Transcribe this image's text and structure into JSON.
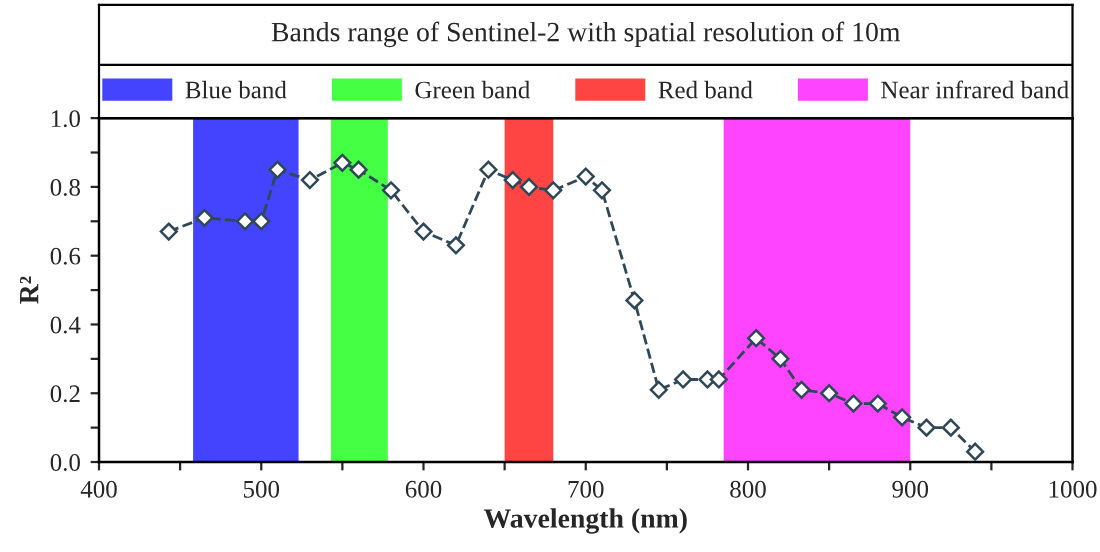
{
  "chart_data": {
    "type": "line",
    "title": "Bands range of Sentinel-2 with spatial resolution of 10m",
    "xlabel": "Wavelength (nm)",
    "ylabel": "R²",
    "series": [
      {
        "color": "#2f4858",
        "x": [
          443,
          465,
          490,
          500,
          510,
          530,
          550,
          560,
          580,
          600,
          620,
          640,
          655,
          665,
          680,
          700,
          710,
          730,
          745,
          760,
          775,
          782,
          805,
          820,
          833,
          850,
          865,
          880,
          895,
          910,
          925,
          940
        ],
        "values": [
          0.67,
          0.71,
          0.7,
          0.7,
          0.85,
          0.82,
          0.87,
          0.85,
          0.79,
          0.67,
          0.63,
          0.85,
          0.82,
          0.8,
          0.79,
          0.83,
          0.79,
          0.47,
          0.21,
          0.24,
          0.24,
          0.24,
          0.36,
          0.3,
          0.21,
          0.2,
          0.17,
          0.17,
          0.13,
          0.1,
          0.1,
          0.03
        ]
      }
    ],
    "bands": [
      {
        "axis": "x",
        "from": 458,
        "to": 523,
        "label": "Blue band",
        "color": "#4444ff"
      },
      {
        "axis": "x",
        "from": 543,
        "to": 578,
        "label": "Green band",
        "color": "#44ff44"
      },
      {
        "axis": "x",
        "from": 650,
        "to": 680,
        "label": "Red band",
        "color": "#ff4444"
      },
      {
        "axis": "x",
        "from": 785,
        "to": 900,
        "label": "Near infrared band",
        "color": "#ff44ff"
      }
    ],
    "xlim": [
      400,
      1000
    ],
    "xticks": [
      400,
      {
        "value": 450,
        "label": null
      },
      500,
      {
        "value": 550,
        "label": null
      },
      600,
      {
        "value": 650,
        "label": null
      },
      700,
      {
        "value": 750,
        "label": null
      },
      800,
      {
        "value": 850,
        "label": null
      },
      900,
      {
        "value": 950,
        "label": null
      },
      1000
    ],
    "ylim": [
      0,
      1
    ],
    "yticks": [
      {
        "value": 0,
        "label": "0.0"
      },
      {
        "value": 0.1,
        "label": null
      },
      {
        "value": 0.2,
        "label": "0.2"
      },
      {
        "value": 0.3,
        "label": null
      },
      {
        "value": 0.4,
        "label": "0.4"
      },
      {
        "value": 0.5,
        "label": null
      },
      {
        "value": 0.6,
        "label": "0.6"
      },
      {
        "value": 0.7,
        "label": null
      },
      {
        "value": 0.8,
        "label": "0.8"
      },
      {
        "value": 0.9,
        "label": null
      },
      {
        "value": 1.0,
        "label": "1.0"
      }
    ],
    "marker": "diamond",
    "line_style": "dashed",
    "legend": "top",
    "grid": false
  }
}
